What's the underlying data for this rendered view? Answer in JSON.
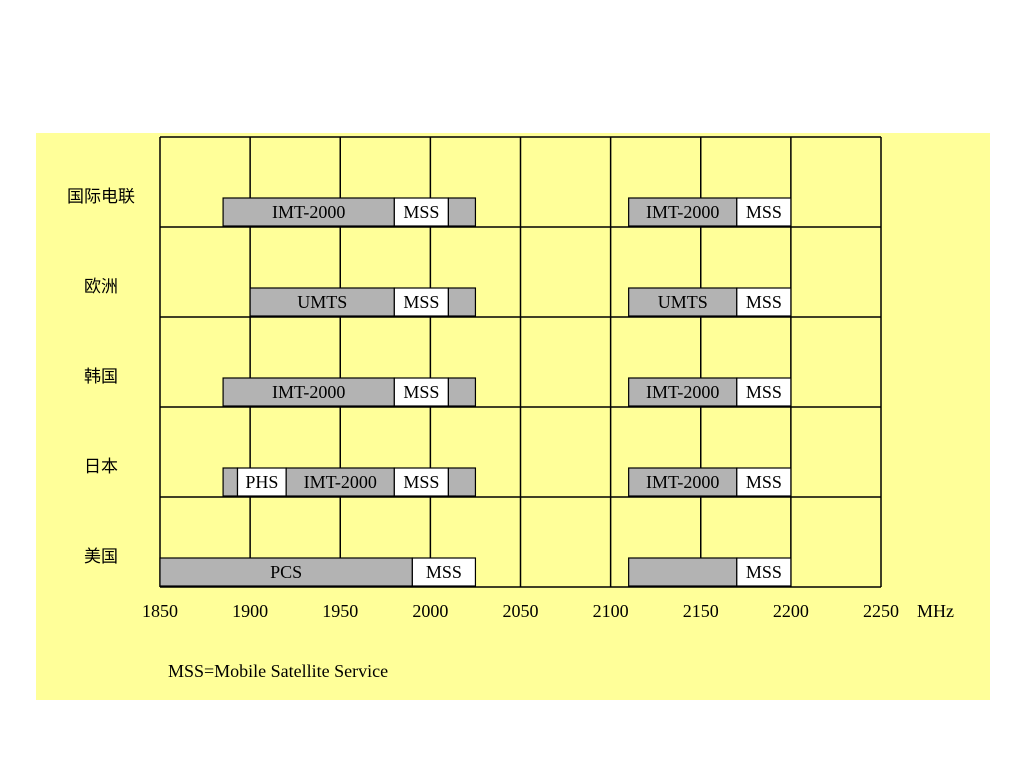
{
  "chart_data": {
    "type": "band-allocation",
    "x_ticks": [
      1850,
      1900,
      1950,
      2000,
      2050,
      2100,
      2150,
      2200,
      2250
    ],
    "xlim": [
      1850,
      2250
    ],
    "x_unit": "MHz",
    "grid": true,
    "colors": {
      "background": "#ffff99",
      "band": "#b3b3b3",
      "mss_band": "#ffffff",
      "line": "#000000"
    },
    "rows": [
      {
        "region": "国际电联",
        "bands": [
          {
            "label": "IMT-2000",
            "start": 1885,
            "end": 1980,
            "fill": "gray"
          },
          {
            "label": "MSS",
            "start": 1980,
            "end": 2010,
            "fill": "white"
          },
          {
            "label": "",
            "start": 2010,
            "end": 2025,
            "fill": "gray"
          },
          {
            "label": "IMT-2000",
            "start": 2110,
            "end": 2170,
            "fill": "gray"
          },
          {
            "label": "MSS",
            "start": 2170,
            "end": 2200,
            "fill": "white"
          }
        ]
      },
      {
        "region": "欧洲",
        "bands": [
          {
            "label": "UMTS",
            "start": 1900,
            "end": 1980,
            "fill": "gray"
          },
          {
            "label": "MSS",
            "start": 1980,
            "end": 2010,
            "fill": "white"
          },
          {
            "label": "",
            "start": 2010,
            "end": 2025,
            "fill": "gray"
          },
          {
            "label": "UMTS",
            "start": 2110,
            "end": 2170,
            "fill": "gray"
          },
          {
            "label": "MSS",
            "start": 2170,
            "end": 2200,
            "fill": "white"
          }
        ]
      },
      {
        "region": "韩国",
        "bands": [
          {
            "label": "IMT-2000",
            "start": 1885,
            "end": 1980,
            "fill": "gray"
          },
          {
            "label": "MSS",
            "start": 1980,
            "end": 2010,
            "fill": "white"
          },
          {
            "label": "",
            "start": 2010,
            "end": 2025,
            "fill": "gray"
          },
          {
            "label": "IMT-2000",
            "start": 2110,
            "end": 2170,
            "fill": "gray"
          },
          {
            "label": "MSS",
            "start": 2170,
            "end": 2200,
            "fill": "white"
          }
        ]
      },
      {
        "region": "日本",
        "bands": [
          {
            "label": "",
            "start": 1885,
            "end": 1893,
            "fill": "gray"
          },
          {
            "label": "PHS",
            "start": 1893,
            "end": 1920,
            "fill": "white"
          },
          {
            "label": "IMT-2000",
            "start": 1920,
            "end": 1980,
            "fill": "gray"
          },
          {
            "label": "MSS",
            "start": 1980,
            "end": 2010,
            "fill": "white"
          },
          {
            "label": "",
            "start": 2010,
            "end": 2025,
            "fill": "gray"
          },
          {
            "label": "IMT-2000",
            "start": 2110,
            "end": 2170,
            "fill": "gray"
          },
          {
            "label": "MSS",
            "start": 2170,
            "end": 2200,
            "fill": "white"
          }
        ]
      },
      {
        "region": "美国",
        "bands": [
          {
            "label": "PCS",
            "start": 1850,
            "end": 1990,
            "fill": "gray"
          },
          {
            "label": "MSS",
            "start": 1990,
            "end": 2025,
            "fill": "white"
          },
          {
            "label": "",
            "start": 2110,
            "end": 2170,
            "fill": "gray"
          },
          {
            "label": "MSS",
            "start": 2170,
            "end": 2200,
            "fill": "white"
          }
        ]
      }
    ],
    "footnote": "MSS=Mobile Satellite Service"
  }
}
